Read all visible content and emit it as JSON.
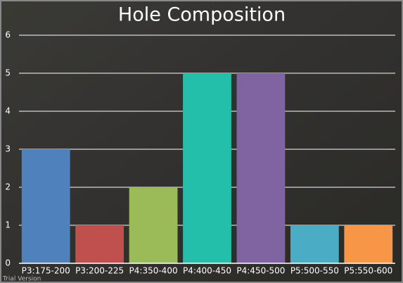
{
  "chart_data": {
    "type": "bar",
    "title": "Hole Composition",
    "categories": [
      "P3:175-200",
      "P3:200-225",
      "P4:350-400",
      "P4:400-450",
      "P4:450-500",
      "P5:500-550",
      "P5:550-600"
    ],
    "values": [
      3,
      1,
      2,
      5,
      5,
      1,
      1
    ],
    "colors": [
      "#4f81bd",
      "#c0504d",
      "#9bbb59",
      "#23bfaa",
      "#8064a2",
      "#4bacc6",
      "#f79646"
    ],
    "ylim": [
      0,
      6
    ],
    "yticks": [
      0,
      1,
      2,
      3,
      4,
      5,
      6
    ],
    "grid": true,
    "watermark": "Trial Version"
  }
}
